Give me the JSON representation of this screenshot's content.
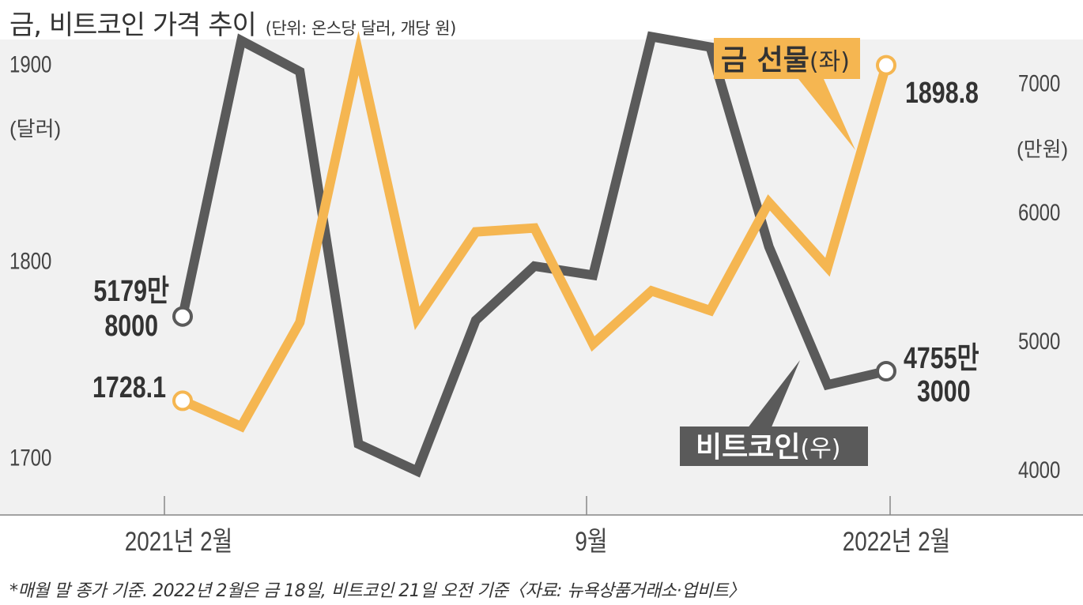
{
  "title": "금, 비트코인 가격 추이",
  "subtitle": "(단위: 온스당 달러, 개당 원)",
  "footnote": "*매월 말 종가 기준. 2022년 2월은 금 18일, 비트코인 21일 오전 기준〈자료: 뉴욕상품거래소·업비트〉",
  "colors": {
    "gold": "#f5b651",
    "bitcoin": "#5a5a5a",
    "background": "#f1f1f1"
  },
  "chart_data": {
    "type": "line",
    "x": [
      "2021-02",
      "2021-03",
      "2021-04",
      "2021-05",
      "2021-06",
      "2021-07",
      "2021-08",
      "2021-09",
      "2021-10",
      "2021-11",
      "2021-12",
      "2022-01",
      "2022-02"
    ],
    "x_tick_labels": [
      "2021년 2월",
      "9월",
      "2022년 2월"
    ],
    "series": [
      {
        "name": "금 선물",
        "axis_note": "(좌)",
        "axis": "left",
        "values": [
          1728.1,
          1715,
          1768,
          1905,
          1770,
          1814,
          1816,
          1757,
          1784,
          1774,
          1829,
          1796,
          1898.8
        ]
      },
      {
        "name": "비트코인",
        "axis_note": "(우)",
        "axis": "right",
        "values": [
          51798000,
          73200000,
          70800000,
          41900000,
          39800000,
          51500000,
          55700000,
          55000000,
          73500000,
          72700000,
          57200000,
          46500000,
          47553000
        ]
      }
    ],
    "left_axis": {
      "ticks": [
        "1700",
        "1800",
        "1900"
      ],
      "unit": "(달러)",
      "ylim": [
        1670,
        1932
      ]
    },
    "right_axis": {
      "ticks": [
        "4000",
        "5000",
        "6000",
        "7000"
      ],
      "unit": "(만원)",
      "ylim": [
        36400000,
        76350000
      ]
    },
    "annotations": {
      "gold_start": "1728.1",
      "gold_end": "1898.8",
      "btc_start": [
        "5179만",
        "8000"
      ],
      "btc_end": [
        "4755만",
        "3000"
      ]
    }
  }
}
